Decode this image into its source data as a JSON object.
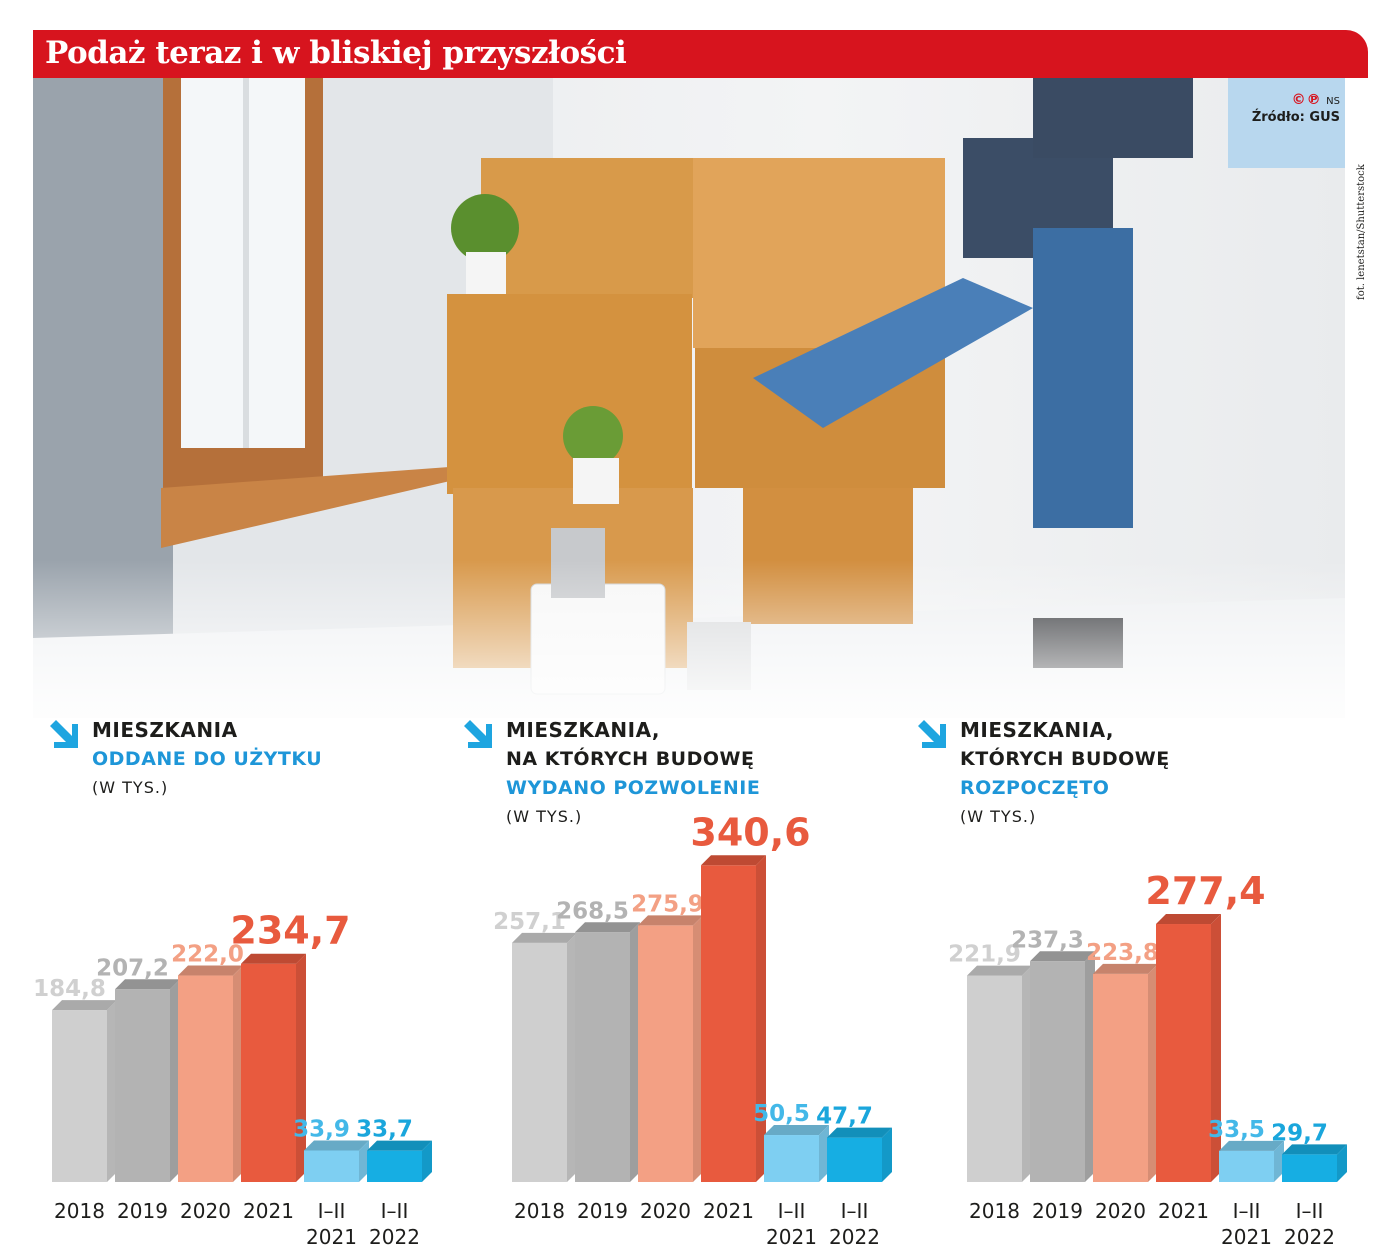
{
  "title": "Podaż teraz i w bliskiej przyszłości",
  "source": {
    "copyright": "©℗",
    "ns": "NS",
    "label": "Źródło: GUS"
  },
  "photo_credit": "fot. lenetstan/Shutterstock",
  "colors": {
    "red": "#d7141e",
    "bar_2018": "#cfcfcf",
    "bar_2019": "#b3b3b3",
    "bar_2020": "#f3a084",
    "bar_2021": "#e85a3e",
    "bar_i2021": "#7ecff2",
    "bar_i2022": "#16aee3",
    "heading_blue": "#1e96d8"
  },
  "panels": [
    {
      "line1": "Mieszkania",
      "line2": "oddane do użytku",
      "line3": "",
      "unit": "(w tys.)"
    },
    {
      "line1": "Mieszkania,",
      "line2": "na których budowę",
      "line3": "wydano pozwolenie",
      "unit": "(w tys.)"
    },
    {
      "line1": "Mieszkania,",
      "line2": "których budowę",
      "line3": "rozpoczęto",
      "unit": "(w tys.)"
    }
  ],
  "chart_data": [
    {
      "type": "bar",
      "title": "Mieszkania oddane do użytku (w tys.)",
      "categories": [
        "2018",
        "2019",
        "2020",
        "2021",
        "I–II 2021",
        "I–II 2022"
      ],
      "values": [
        184.8,
        207.2,
        222.0,
        234.7,
        33.9,
        33.7
      ],
      "labels": [
        "184,8",
        "207,2",
        "222,0",
        "234,7",
        "33,9",
        "33,7"
      ]
    },
    {
      "type": "bar",
      "title": "Mieszkania, na których budowę wydano pozwolenie (w tys.)",
      "categories": [
        "2018",
        "2019",
        "2020",
        "2021",
        "I–II 2021",
        "I–II 2022"
      ],
      "values": [
        257.1,
        268.5,
        275.9,
        340.6,
        50.5,
        47.7
      ],
      "labels": [
        "257,1",
        "268,5",
        "275,9",
        "340,6",
        "50,5",
        "47,7"
      ]
    },
    {
      "type": "bar",
      "title": "Mieszkania, których budowę rozpoczęto (w tys.)",
      "categories": [
        "2018",
        "2019",
        "2020",
        "2021",
        "I–II 2021",
        "I–II 2022"
      ],
      "values": [
        221.9,
        237.3,
        223.8,
        277.4,
        33.5,
        29.7
      ],
      "labels": [
        "221,9",
        "237,3",
        "223,8",
        "277,4",
        "33,5",
        "29,7"
      ]
    }
  ]
}
